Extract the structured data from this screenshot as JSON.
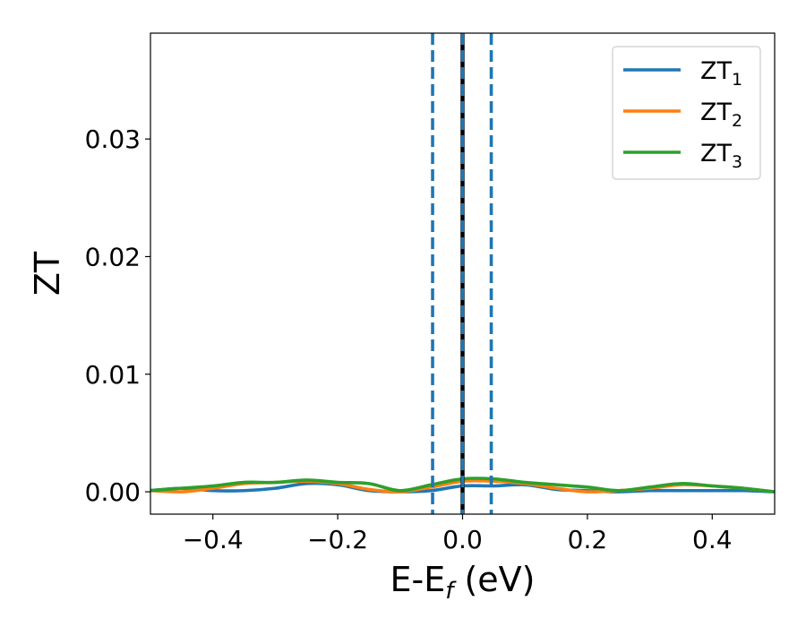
{
  "chart_data": {
    "type": "line",
    "xlabel": {
      "main": "E-E",
      "sub": "f",
      "unit": " (eV)"
    },
    "ylabel": "ZT",
    "xlim": [
      -0.5,
      0.5
    ],
    "ylim": [
      -0.0019,
      0.039
    ],
    "x_ticks": [
      {
        "value": -0.4,
        "label": "−0.4"
      },
      {
        "value": -0.2,
        "label": "−0.2"
      },
      {
        "value": 0.0,
        "label": "0.0"
      },
      {
        "value": 0.2,
        "label": "0.2"
      },
      {
        "value": 0.4,
        "label": "0.4"
      }
    ],
    "y_ticks": [
      {
        "value": 0.0,
        "label": "0.00"
      },
      {
        "value": 0.01,
        "label": "0.01"
      },
      {
        "value": 0.02,
        "label": "0.02"
      },
      {
        "value": 0.03,
        "label": "0.03"
      }
    ],
    "grid": false,
    "legend_position": "top-right",
    "vertical_lines": [
      {
        "x": -0.048,
        "style": "dashed",
        "color": "#1f77b4"
      },
      {
        "x": 0.0,
        "style": "solid",
        "color": "#000000"
      },
      {
        "x": 0.0,
        "style": "dashed",
        "color": "#1f77b4"
      },
      {
        "x": 0.046,
        "style": "dashed",
        "color": "#1f77b4"
      }
    ],
    "series": [
      {
        "name": "ZT",
        "sub": "1",
        "color": "#1f77b4",
        "x": [
          -0.5,
          -0.45,
          -0.4,
          -0.35,
          -0.3,
          -0.25,
          -0.2,
          -0.15,
          -0.1,
          -0.05,
          0.0,
          0.05,
          0.1,
          0.15,
          0.2,
          0.25,
          0.3,
          0.35,
          0.4,
          0.45,
          0.5
        ],
        "y": [
          0.0001,
          0.0003,
          0.0001,
          0.0001,
          0.0003,
          0.0007,
          0.0006,
          0.0001,
          0.0,
          0.0001,
          0.0005,
          0.0005,
          0.0006,
          0.0002,
          0.0001,
          0.0,
          0.0001,
          0.0001,
          0.0001,
          0.0001,
          0.0
        ]
      },
      {
        "name": "ZT",
        "sub": "2",
        "color": "#ff7f0e",
        "x": [
          -0.5,
          -0.45,
          -0.4,
          -0.35,
          -0.3,
          -0.25,
          -0.2,
          -0.15,
          -0.1,
          -0.05,
          0.0,
          0.05,
          0.1,
          0.15,
          0.2,
          0.25,
          0.3,
          0.35,
          0.4,
          0.45,
          0.5
        ],
        "y": [
          0.0001,
          0.0,
          0.0003,
          0.0007,
          0.0008,
          0.0009,
          0.0007,
          0.0002,
          0.0,
          0.0004,
          0.0009,
          0.0009,
          0.0007,
          0.0003,
          0.0,
          0.0001,
          0.0003,
          0.0006,
          0.0005,
          0.0003,
          0.0
        ]
      },
      {
        "name": "ZT",
        "sub": "3",
        "color": "#2ca02c",
        "x": [
          -0.5,
          -0.45,
          -0.4,
          -0.35,
          -0.3,
          -0.25,
          -0.2,
          -0.15,
          -0.1,
          -0.05,
          0.0,
          0.05,
          0.1,
          0.15,
          0.2,
          0.25,
          0.3,
          0.35,
          0.4,
          0.45,
          0.5
        ],
        "y": [
          0.0001,
          0.0003,
          0.0005,
          0.0008,
          0.0008,
          0.001,
          0.0008,
          0.0007,
          0.0001,
          0.0006,
          0.0011,
          0.0011,
          0.0008,
          0.0006,
          0.0004,
          0.0001,
          0.0004,
          0.0007,
          0.0005,
          0.0003,
          0.0
        ]
      }
    ]
  }
}
